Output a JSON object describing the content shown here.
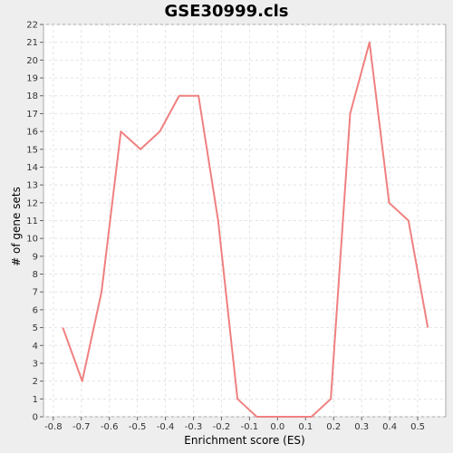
{
  "chart_data": {
    "type": "line",
    "title": "GSE30999.cls",
    "xlabel": "Enrichment score (ES)",
    "ylabel": "# of gene sets",
    "xlim": [
      -0.835,
      0.6
    ],
    "ylim": [
      0,
      22
    ],
    "xticks": [
      -0.8,
      -0.7,
      -0.6,
      -0.5,
      -0.4,
      -0.3,
      -0.2,
      -0.1,
      0.0,
      0.1,
      0.2,
      0.3,
      0.4,
      0.5
    ],
    "xtick_labels": [
      "-0.8",
      "-0.7",
      "-0.6",
      "-0.5",
      "-0.4",
      "-0.3",
      "-0.2",
      "-0.1",
      "0.0",
      "0.1",
      "0.2",
      "0.3",
      "0.4",
      "0.5"
    ],
    "yticks": [
      0,
      1,
      2,
      3,
      4,
      5,
      6,
      7,
      8,
      9,
      10,
      11,
      12,
      13,
      14,
      15,
      16,
      17,
      18,
      19,
      20,
      21,
      22
    ],
    "ytick_labels": [
      "0",
      "1",
      "2",
      "3",
      "4",
      "5",
      "6",
      "7",
      "8",
      "9",
      "10",
      "11",
      "12",
      "13",
      "14",
      "15",
      "16",
      "17",
      "18",
      "19",
      "20",
      "21",
      "22"
    ],
    "grid": true,
    "line_color": "#f08080",
    "series": [
      {
        "x": [
          -0.766,
          -0.697,
          -0.628,
          -0.559,
          -0.489,
          -0.42,
          -0.351,
          -0.282,
          -0.212,
          -0.143,
          -0.074,
          -0.005,
          0.064,
          0.121,
          0.19,
          0.259,
          0.328,
          0.398,
          0.467,
          0.536
        ],
        "y": [
          5,
          2,
          7,
          16,
          15,
          16,
          18,
          18,
          11,
          1,
          0,
          0,
          0,
          0,
          1,
          17,
          21,
          12,
          11,
          5
        ]
      }
    ]
  }
}
